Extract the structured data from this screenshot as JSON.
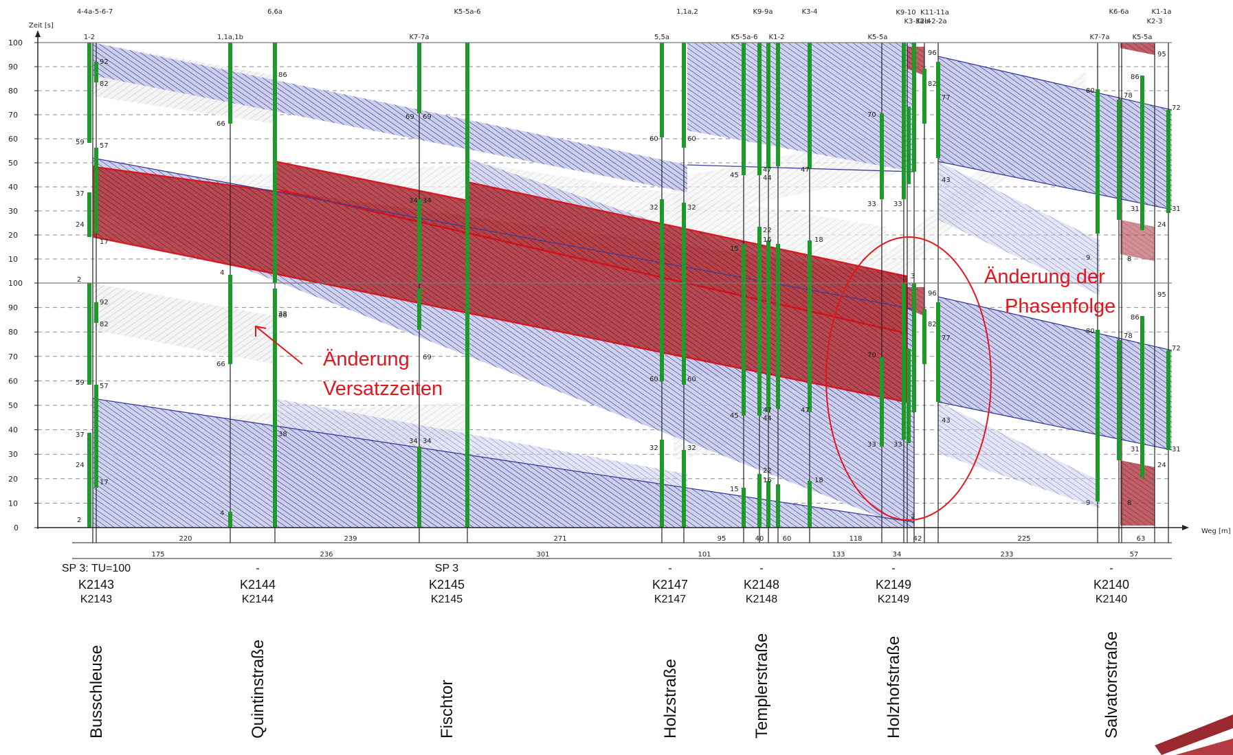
{
  "axis": {
    "y_label": "Zeit [s]",
    "x_label": "Weg [m]",
    "y_ticks_upper": [
      "100",
      "90",
      "80",
      "70",
      "60",
      "50",
      "40",
      "30",
      "20",
      "10"
    ],
    "y_ticks_lower": [
      "100",
      "90",
      "80",
      "70",
      "60",
      "50",
      "40",
      "30",
      "20",
      "10",
      "0"
    ]
  },
  "signal_groups_top": [
    "4-4a-5-6-7",
    "6,6a",
    "K5-5a-6",
    "1,1a,2",
    "K9-9a",
    "K3-4",
    "K9-10",
    "K11-11a",
    "K3-3a-4",
    "K2b-2-2a",
    "K6-6a",
    "K1-1a",
    "K2-3"
  ],
  "signal_groups_second": [
    "1-2",
    "1,1a,1b",
    "K7-7a",
    "5,5a",
    "K5-5a-6",
    "K1-2",
    "K5-5a",
    "K7-7a",
    "K5-5a"
  ],
  "distances_row1": [
    "220",
    "239",
    "271",
    "95",
    "40",
    "60",
    "118",
    "42",
    "225",
    "63"
  ],
  "distances_row2": [
    "175",
    "236",
    "301",
    "101",
    "133",
    "34",
    "233",
    "57"
  ],
  "intersections": [
    {
      "sp": "SP 3: TU=100",
      "id": "K2143",
      "id2": "K2143",
      "street": "Busschleuse"
    },
    {
      "sp": "-",
      "id": "K2144",
      "id2": "K2144",
      "street": "Quintinstraße"
    },
    {
      "sp": "SP 3",
      "id": "K2145",
      "id2": "K2145",
      "street": "Fischtor"
    },
    {
      "sp": "-",
      "id": "K2147",
      "id2": "K2147",
      "street": "Holzstraße"
    },
    {
      "sp": "-",
      "id": "K2148",
      "id2": "K2148",
      "street": "Templerstraße"
    },
    {
      "sp": "-",
      "id": "K2149",
      "id2": "K2149",
      "street": "Holzhofstraße"
    },
    {
      "sp": "-",
      "id": "K2140",
      "id2": "K2140",
      "street": "Salvatorstraße"
    }
  ],
  "annotations": {
    "offset_change": [
      "Änderung",
      "Versatzzeiten"
    ],
    "phase_change": [
      "Änderung der",
      "Phasenfolge"
    ]
  },
  "time_labels": [
    "92",
    "82",
    "59",
    "57",
    "37",
    "24",
    "17",
    "66",
    "86",
    "69",
    "69",
    "60",
    "60",
    "45",
    "47",
    "44",
    "47",
    "70",
    "33",
    "33",
    "96",
    "82",
    "77",
    "43",
    "80",
    "78",
    "86",
    "72",
    "31",
    "31",
    "24",
    "95",
    "34",
    "34",
    "32",
    "32",
    "15",
    "22",
    "16",
    "18",
    "38",
    "9",
    "8",
    "2",
    "4",
    "3",
    "3"
  ],
  "colors": {
    "green_band": "#1e9a2a",
    "blue_band": "#3a3f9a",
    "grey_band": "#b0b0b0",
    "red_band": "#9a2a30",
    "annotation_red": "#e8141c"
  }
}
